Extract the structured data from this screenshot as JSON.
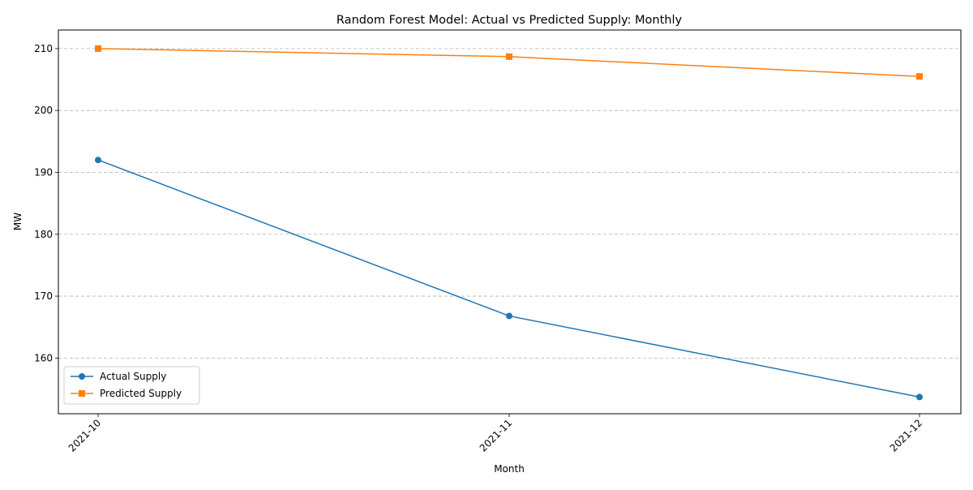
{
  "chart_data": {
    "type": "line",
    "title": "Random Forest Model: Actual vs Predicted Supply: Monthly",
    "xlabel": "Month",
    "ylabel": "MW",
    "categories": [
      "2021-10",
      "2021-11",
      "2021-12"
    ],
    "ylim": [
      151,
      213
    ],
    "yticks": [
      "160",
      "170",
      "180",
      "190",
      "200",
      "210"
    ],
    "grid": "y-dashed",
    "legend_position": "bottom-left",
    "series": [
      {
        "name": "Actual Supply",
        "values": [
          192.0,
          166.8,
          153.7
        ],
        "color": "#1f77b4",
        "marker": "circle"
      },
      {
        "name": "Predicted Supply",
        "values": [
          210.0,
          208.7,
          205.5
        ],
        "color": "#ff7f0e",
        "marker": "square"
      }
    ]
  }
}
